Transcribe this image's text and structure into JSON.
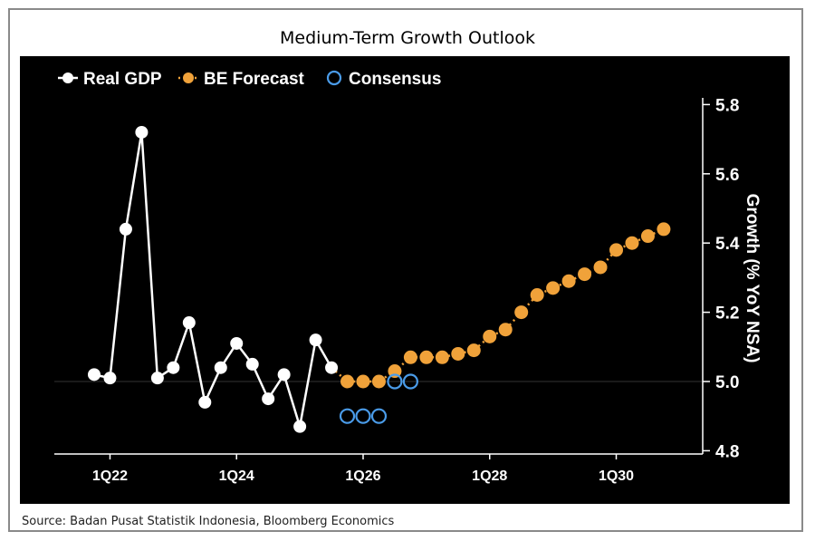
{
  "chart_data": {
    "type": "line",
    "title": "Medium-Term Growth Outlook",
    "ylabel": "Growth (% YoY NSA)",
    "xlabel": "",
    "ylim": [
      4.8,
      5.8
    ],
    "yticks": [
      "4.8",
      "5.0",
      "5.2",
      "5.4",
      "5.6",
      "5.8"
    ],
    "yticks_values": [
      4.8,
      5.0,
      5.2,
      5.4,
      5.6,
      5.8
    ],
    "xticks": [
      "1Q22",
      "1Q24",
      "1Q26",
      "1Q28",
      "1Q30"
    ],
    "x_start": "4Q21",
    "legend_position": "top-left",
    "grid": "y=5.0 only",
    "series": [
      {
        "name": "Real GDP",
        "color": "#ffffff",
        "style": "solid-markers",
        "start_index": 0,
        "values": [
          5.02,
          5.01,
          5.44,
          5.72,
          5.01,
          5.04,
          5.17,
          4.94,
          5.04,
          5.11,
          5.05,
          4.95,
          5.02,
          4.87,
          5.12,
          5.04
        ]
      },
      {
        "name": "BE Forecast",
        "color": "#f0a23a",
        "style": "dotted-markers",
        "start_index": 16,
        "values": [
          5.0,
          5.0,
          5.0,
          5.03,
          5.07,
          5.07,
          5.07,
          5.08,
          5.09,
          5.13,
          5.15,
          5.2,
          5.25,
          5.27,
          5.29,
          5.31,
          5.33,
          5.38,
          5.4,
          5.42,
          5.44
        ]
      },
      {
        "name": "Consensus",
        "color": "#4a9be8",
        "style": "hollow-markers",
        "start_index": 16,
        "values": [
          4.9,
          4.9,
          4.9,
          5.0,
          5.0
        ]
      }
    ]
  },
  "source": "Source: Badan Pusat Statistik Indonesia, Bloomberg Economics"
}
